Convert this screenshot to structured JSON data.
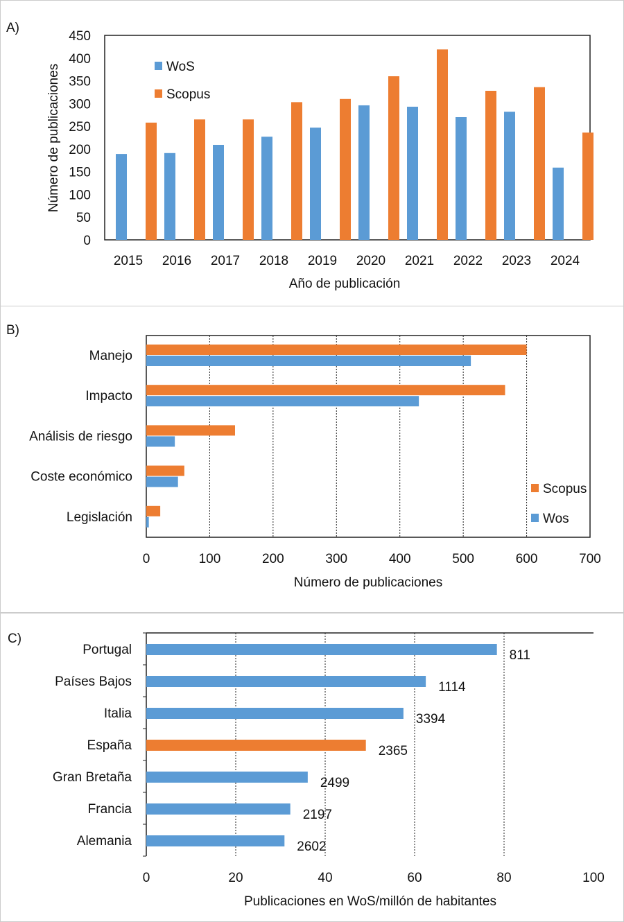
{
  "chart_data": [
    {
      "type": "bar",
      "panel_label": "A)",
      "categories": [
        "2015",
        "2016",
        "2017",
        "2018",
        "2019",
        "2020",
        "2021",
        "2022",
        "2023",
        "2024"
      ],
      "series": [
        {
          "name": "WoS",
          "color": "#5b9bd5",
          "values": [
            189,
            191,
            209,
            227,
            247,
            296,
            293,
            270,
            282,
            159
          ]
        },
        {
          "name": "Scopus",
          "color": "#ed7d31",
          "values": [
            258,
            265,
            265,
            303,
            310,
            360,
            419,
            328,
            336,
            236
          ]
        }
      ],
      "xlabel": "Año de publicación",
      "ylabel": "Número de publicaciones",
      "ylim": [
        0,
        450
      ],
      "yticks": [
        "0",
        "50",
        "100",
        "150",
        "200",
        "250",
        "300",
        "350",
        "400",
        "450"
      ],
      "grid": false,
      "legend": "top-left"
    },
    {
      "type": "bar",
      "orientation": "horizontal",
      "panel_label": "B)",
      "categories": [
        "Manejo",
        "Impacto",
        "Análisis de riesgo",
        "Coste económico",
        "Legislación"
      ],
      "series": [
        {
          "name": "Scopus",
          "color": "#ed7d31",
          "values": [
            600,
            566,
            140,
            60,
            22
          ]
        },
        {
          "name": "Wos",
          "color": "#5b9bd5",
          "values": [
            512,
            430,
            45,
            50,
            4
          ]
        }
      ],
      "xlabel": "Número de publicaciones",
      "xlim": [
        0,
        700
      ],
      "xticks": [
        "0",
        "100",
        "200",
        "300",
        "400",
        "500",
        "600",
        "700"
      ],
      "grid": true,
      "legend": "bottom-right"
    },
    {
      "type": "bar",
      "orientation": "horizontal",
      "panel_label": "C)",
      "categories": [
        "Portugal",
        "Países Bajos",
        "Italia",
        "España",
        "Gran Bretaña",
        "Francia",
        "Alemania"
      ],
      "values": [
        78.4,
        62.5,
        57.5,
        49.1,
        36.1,
        32.2,
        30.9
      ],
      "data_labels": [
        "811",
        "1114",
        "3394",
        "2365",
        "2499",
        "2197",
        "2602"
      ],
      "colors": [
        "#5b9bd5",
        "#5b9bd5",
        "#5b9bd5",
        "#ed7d31",
        "#5b9bd5",
        "#5b9bd5",
        "#5b9bd5"
      ],
      "xlabel": "Publicaciones en WoS/millón de habitantes",
      "xlim": [
        0,
        100
      ],
      "xticks": [
        "0",
        "20",
        "40",
        "60",
        "80",
        "100"
      ],
      "grid": true
    }
  ]
}
